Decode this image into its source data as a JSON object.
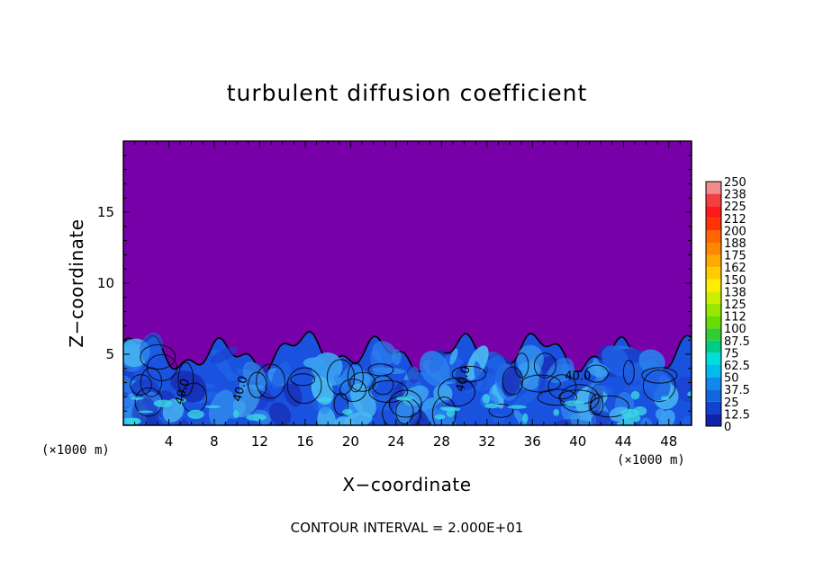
{
  "chart_data": {
    "type": "heatmap",
    "title": "turbulent diffusion coefficient",
    "xlabel": "X−coordinate",
    "ylabel": "Z−coordinate",
    "x_unit_left": "(×1000 m)",
    "x_unit_right": "(×1000 m)",
    "xlim": [
      0,
      50
    ],
    "ylim": [
      0,
      20
    ],
    "x_ticks": [
      4,
      8,
      12,
      16,
      20,
      24,
      28,
      32,
      36,
      40,
      44,
      48
    ],
    "y_ticks": [
      5,
      10,
      15
    ],
    "colorbar": {
      "levels": [
        "250",
        "238",
        "225",
        "212",
        "200",
        "188",
        "175",
        "162",
        "150",
        "138",
        "125",
        "112",
        "100",
        "87.5",
        "75",
        "62.5",
        "50",
        "37.5",
        "25",
        "12.5",
        "0"
      ],
      "colors": [
        "#f08c8c",
        "#f04040",
        "#ff1a1a",
        "#ff3300",
        "#ff6600",
        "#ff8800",
        "#ffaa00",
        "#ffcc00",
        "#ffee00",
        "#ccee00",
        "#99e600",
        "#66dd00",
        "#33cc33",
        "#00cc88",
        "#00dddd",
        "#00bbee",
        "#1188ee",
        "#1166dd",
        "#1144cc",
        "#1122aa",
        "#7700a8"
      ]
    },
    "boundary_layer_top_approx": 6,
    "contour_labels": [
      "40.0",
      "40.0",
      "40.0",
      "40.0"
    ],
    "background_value": 0
  },
  "footer": "CONTOUR INTERVAL = 2.000E+01"
}
